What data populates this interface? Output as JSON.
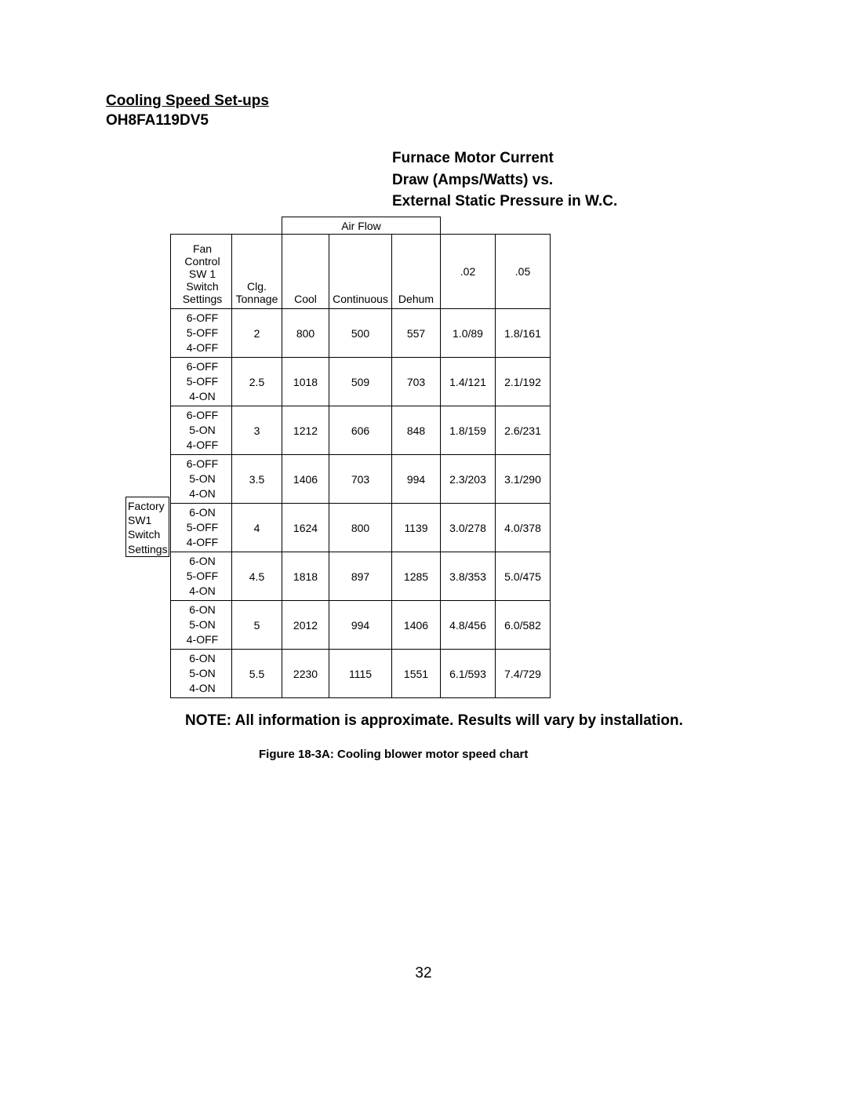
{
  "titles": {
    "heading1": "Cooling Speed Set-ups",
    "heading2": "OH8FA119DV5",
    "sub1": "Furnace Motor Current",
    "sub2": "Draw (Amps/Watts) vs.",
    "sub3": "External Static Pressure in W.C."
  },
  "table": {
    "airflow_label": "Air Flow",
    "headers": {
      "settings_l1": "Fan",
      "settings_l2": "Control",
      "settings_l3": "SW 1",
      "settings_l4": "Switch",
      "settings_l5": "Settings",
      "tonnage_l1": "Clg.",
      "tonnage_l2": "Tonnage",
      "cool": "Cool",
      "continuous": "Continuous",
      "dehum": "Dehum",
      "p02": ".02",
      "p05": ".05"
    },
    "factory_l1": "Factory",
    "factory_l2": "SW1",
    "factory_l3": "Switch",
    "factory_l4": "Settings",
    "rows": [
      {
        "s1": "6-OFF",
        "s2": "5-OFF",
        "s3": "4-OFF",
        "ton": "2",
        "cool": "800",
        "cont": "500",
        "dehum": "557",
        "p02": "1.0/89",
        "p05": "1.8/161"
      },
      {
        "s1": "6-OFF",
        "s2": "5-OFF",
        "s3": "4-ON",
        "ton": "2.5",
        "cool": "1018",
        "cont": "509",
        "dehum": "703",
        "p02": "1.4/121",
        "p05": "2.1/192"
      },
      {
        "s1": "6-OFF",
        "s2": "5-ON",
        "s3": "4-OFF",
        "ton": "3",
        "cool": "1212",
        "cont": "606",
        "dehum": "848",
        "p02": "1.8/159",
        "p05": "2.6/231"
      },
      {
        "s1": "6-OFF",
        "s2": "5-ON",
        "s3": "4-ON",
        "ton": "3.5",
        "cool": "1406",
        "cont": "703",
        "dehum": "994",
        "p02": "2.3/203",
        "p05": "3.1/290"
      },
      {
        "s1": "6-ON",
        "s2": "5-OFF",
        "s3": "4-OFF",
        "ton": "4",
        "cool": "1624",
        "cont": "800",
        "dehum": "1139",
        "p02": "3.0/278",
        "p05": "4.0/378"
      },
      {
        "s1": "6-ON",
        "s2": "5-OFF",
        "s3": "4-ON",
        "ton": "4.5",
        "cool": "1818",
        "cont": "897",
        "dehum": "1285",
        "p02": "3.8/353",
        "p05": "5.0/475"
      },
      {
        "s1": "6-ON",
        "s2": "5-ON",
        "s3": "4-OFF",
        "ton": "5",
        "cool": "2012",
        "cont": "994",
        "dehum": "1406",
        "p02": "4.8/456",
        "p05": "6.0/582"
      },
      {
        "s1": "6-ON",
        "s2": "5-ON",
        "s3": "4-ON",
        "ton": "5.5",
        "cool": "2230",
        "cont": "1115",
        "dehum": "1551",
        "p02": "6.1/593",
        "p05": "7.4/729"
      }
    ]
  },
  "note": "NOTE:  All information is approximate. Results will vary by installation.",
  "caption": "Figure 18-3A:  Cooling blower motor speed chart",
  "page_number": "32"
}
